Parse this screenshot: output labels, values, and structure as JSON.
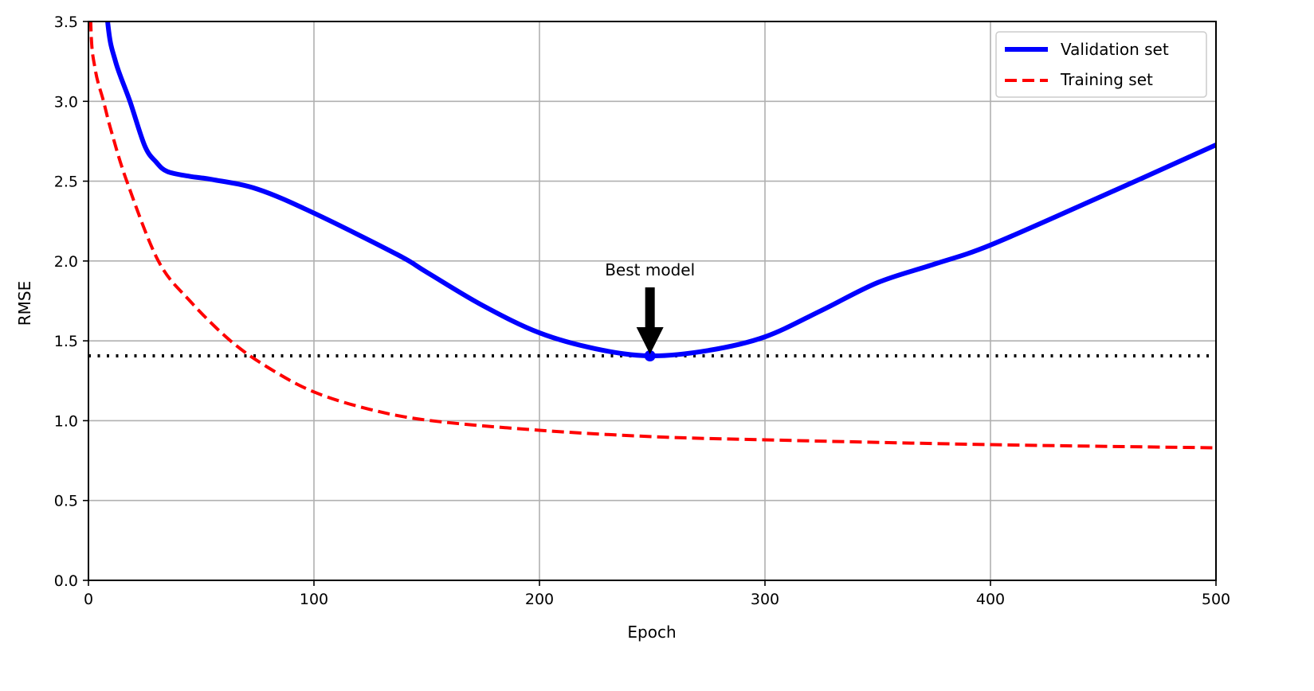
{
  "chart_data": {
    "type": "line",
    "title": "",
    "xlabel": "Epoch",
    "ylabel": "RMSE",
    "xlim": [
      0,
      500
    ],
    "ylim": [
      0,
      3.5
    ],
    "xticks": [
      0,
      100,
      200,
      300,
      400,
      500
    ],
    "xtick_labels": [
      "0",
      "100",
      "200",
      "300",
      "400",
      "500"
    ],
    "yticks": [
      0,
      0.5,
      1,
      1.5,
      2,
      2.5,
      3,
      3.5
    ],
    "ytick_labels": [
      "0.0",
      "0.5",
      "1.0",
      "1.5",
      "2.0",
      "2.5",
      "3.0",
      "3.5"
    ],
    "grid": true,
    "legend_placement": "top-right",
    "series": [
      {
        "name": "Validation set",
        "color": "#0000ff",
        "style": "solid",
        "x": [
          5,
          8.5,
          12,
          18.4,
          25,
          30,
          35,
          45,
          55,
          75,
          100,
          137,
          150,
          175,
          200,
          225,
          249,
          275,
          300,
          325,
          350,
          375,
          400,
          450,
          500
        ],
        "y": [
          4.2,
          3.5,
          3.25,
          3.0,
          2.72,
          2.62,
          2.56,
          2.53,
          2.51,
          2.45,
          2.3,
          2.04,
          1.93,
          1.72,
          1.55,
          1.45,
          1.406,
          1.44,
          1.525,
          1.69,
          1.865,
          1.98,
          2.1,
          2.41,
          2.727
        ]
      },
      {
        "name": "Training set",
        "color": "#ff0000",
        "style": "dashed",
        "x": [
          0.3,
          1,
          3,
          6.7,
          10,
          17,
          31,
          45,
          63,
          80,
          100,
          125,
          152,
          200,
          250,
          300,
          400,
          500
        ],
        "y": [
          4.5,
          3.5,
          3.2,
          3.0,
          2.82,
          2.5,
          2.0,
          1.75,
          1.5,
          1.33,
          1.18,
          1.07,
          1.0,
          0.94,
          0.9,
          0.88,
          0.85,
          0.83
        ]
      }
    ],
    "reference_line": {
      "y": 1.406,
      "style": "dotted",
      "color": "#000000"
    },
    "best_point": {
      "x": 249,
      "y": 1.406,
      "color": "#0000ff"
    },
    "annotations": [
      {
        "text": "Best model",
        "x": 249,
        "y": 1.406,
        "arrow": "down"
      }
    ]
  }
}
